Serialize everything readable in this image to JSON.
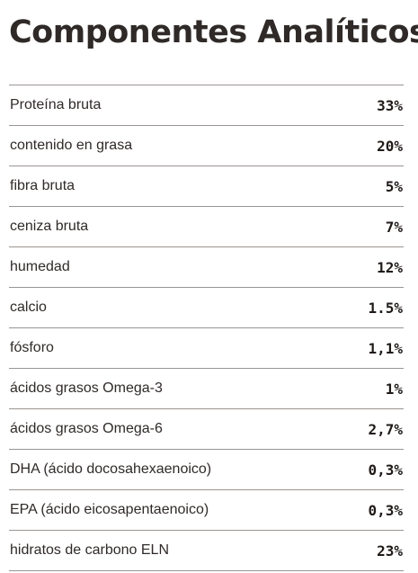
{
  "title": "Componentes Analíticos",
  "rows": [
    {
      "label": "Proteína bruta",
      "value": "33%"
    },
    {
      "label": "contenido en grasa",
      "value": "20%"
    },
    {
      "label": "fibra bruta",
      "value": "5%"
    },
    {
      "label": "ceniza bruta",
      "value": "7%"
    },
    {
      "label": "humedad",
      "value": "12%"
    },
    {
      "label": "calcio",
      "value": "1.5%"
    },
    {
      "label": "fósforo",
      "value": "1,1%"
    },
    {
      "label": "ácidos grasos Omega-3",
      "value": "1%"
    },
    {
      "label": "ácidos grasos Omega-6",
      "value": "2,7%"
    },
    {
      "label": "DHA (ácido docosahexaenoico)",
      "value": "0,3%"
    },
    {
      "label": "EPA (ácido eicosapentaenoico)",
      "value": "0,3%"
    },
    {
      "label": "hidratos de carbono ELN",
      "value": "23%"
    }
  ]
}
